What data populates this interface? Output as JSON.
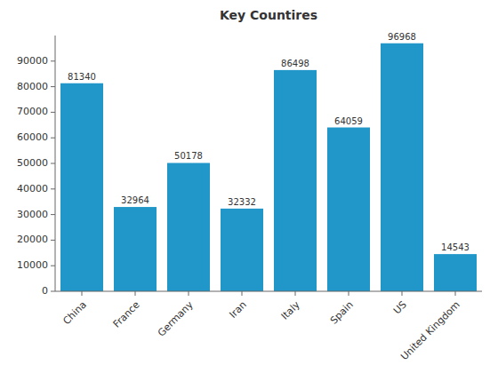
{
  "chart_data": {
    "type": "bar",
    "title": "Key Countires",
    "categories": [
      "China",
      "France",
      "Germany",
      "Iran",
      "Italy",
      "Spain",
      "US",
      "United Kingdom"
    ],
    "values": [
      81340,
      32964,
      50178,
      32332,
      86498,
      64059,
      96968,
      14543
    ],
    "color": "#2196c8",
    "ylim": [
      0,
      100000
    ],
    "yticks": [
      0,
      10000,
      20000,
      30000,
      40000,
      50000,
      60000,
      70000,
      80000,
      90000
    ],
    "grid": false,
    "data_labels": true
  }
}
